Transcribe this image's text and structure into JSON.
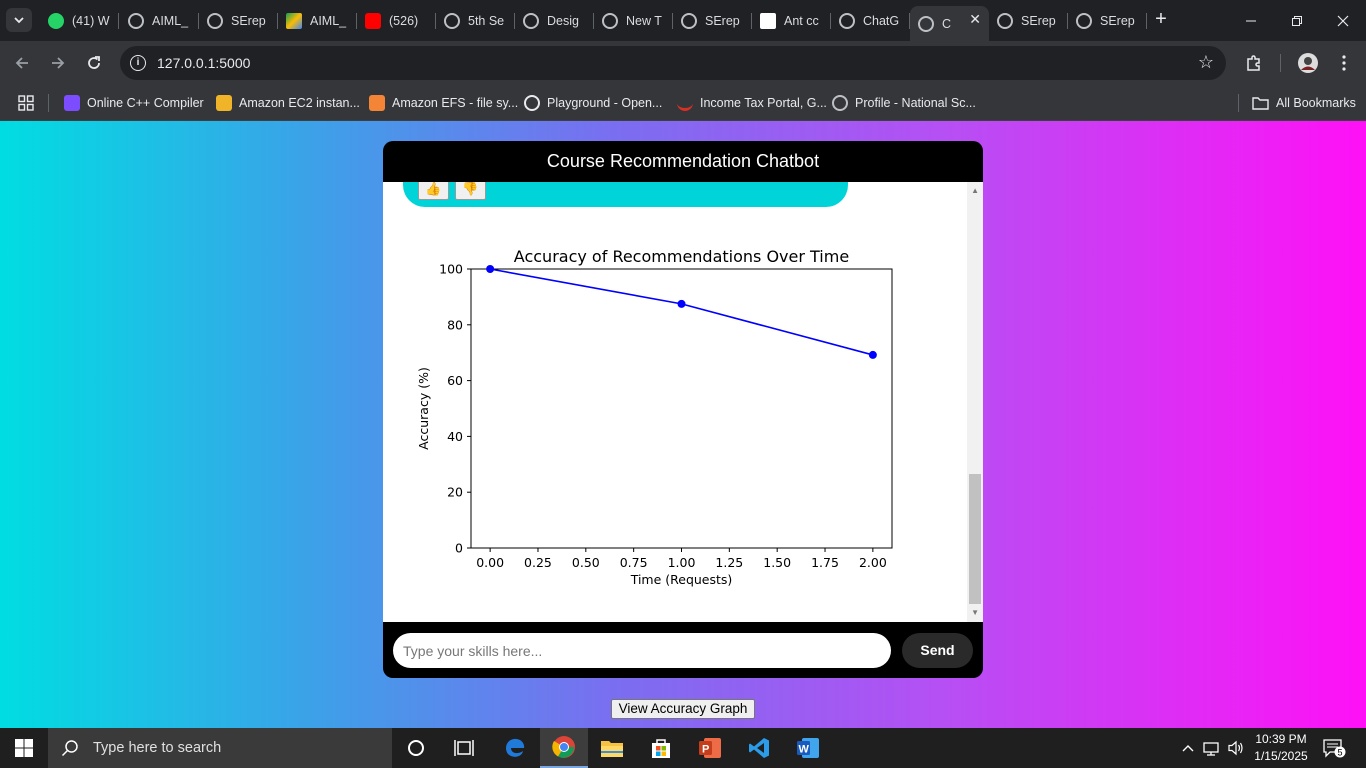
{
  "browser": {
    "tabs": [
      {
        "title": "(41) W",
        "icon": "whatsapp-icon",
        "color": "#25d366"
      },
      {
        "title": "AIML_",
        "icon": "globe-icon",
        "color": "#bdc1c6"
      },
      {
        "title": "SErep",
        "icon": "globe-icon",
        "color": "#bdc1c6"
      },
      {
        "title": "AIML_",
        "icon": "google-drive-icon",
        "color": "#fbbc04"
      },
      {
        "title": "(526)",
        "icon": "youtube-icon",
        "color": "#ff0000"
      },
      {
        "title": "5th Se",
        "icon": "globe-icon",
        "color": "#bdc1c6"
      },
      {
        "title": "Desig",
        "icon": "globe-icon",
        "color": "#bdc1c6"
      },
      {
        "title": "New T",
        "icon": "chrome-icon",
        "color": "#bdc1c6"
      },
      {
        "title": "SErep",
        "icon": "globe-icon",
        "color": "#bdc1c6"
      },
      {
        "title": "Ant cc",
        "icon": "wikipedia-icon",
        "color": "#ffffff"
      },
      {
        "title": "ChatG",
        "icon": "openai-icon",
        "color": "#bdc1c6"
      },
      {
        "title": "C",
        "icon": "globe-icon",
        "color": "#bdc1c6",
        "active": true
      },
      {
        "title": "SErep",
        "icon": "globe-icon",
        "color": "#bdc1c6"
      },
      {
        "title": "SErep",
        "icon": "globe-icon",
        "color": "#bdc1c6"
      }
    ],
    "new_tab": "+",
    "url": "127.0.0.1:5000",
    "bookmarks": [
      {
        "label": "Online C++ Compiler",
        "icon": "compiler-icon",
        "color": "#7c4dff"
      },
      {
        "label": "Amazon EC2 instan...",
        "icon": "aws-ec2-icon",
        "color": "#f0b429"
      },
      {
        "label": "Amazon EFS - file sy...",
        "icon": "aws-efs-icon",
        "color": "#f58536"
      },
      {
        "label": "Playground - Open...",
        "icon": "openai-icon",
        "color": "#e8eaed"
      },
      {
        "label": "Income Tax Portal, G...",
        "icon": "income-tax-icon",
        "color": "#d93025"
      },
      {
        "label": "Profile - National Sc...",
        "icon": "globe-icon",
        "color": "#bdc1c6"
      }
    ],
    "all_bookmarks": "All Bookmarks"
  },
  "chat": {
    "title": "Course Recommendation Chatbot",
    "feedback_up": "👍",
    "feedback_down": "👎",
    "input_placeholder": "Type your skills here...",
    "send_label": "Send",
    "view_graph_label": "View Accuracy Graph"
  },
  "chart_data": {
    "type": "line",
    "title": "Accuracy of Recommendations Over Time",
    "xlabel": "Time (Requests)",
    "ylabel": "Accuracy (%)",
    "x": [
      0,
      1,
      2
    ],
    "series": [
      {
        "values": [
          100,
          87.5,
          69.2
        ],
        "color": "#0000ff"
      }
    ],
    "xlim": [
      -0.1,
      2.1
    ],
    "ylim": [
      0,
      100
    ],
    "xticks": [
      "0.00",
      "0.25",
      "0.50",
      "0.75",
      "1.00",
      "1.25",
      "1.50",
      "1.75",
      "2.00"
    ],
    "yticks": [
      "0",
      "20",
      "40",
      "60",
      "80",
      "100"
    ],
    "grid": false
  },
  "taskbar": {
    "search_placeholder": "Type here to search",
    "apps": [
      "cortana-icon",
      "task-view-icon",
      "edge-icon",
      "chrome-icon",
      "file-explorer-icon",
      "microsoft-store-icon",
      "powerpoint-icon",
      "vscode-icon",
      "word-icon"
    ],
    "time": "10:39 PM",
    "date": "1/15/2025",
    "notification_count": "5"
  }
}
